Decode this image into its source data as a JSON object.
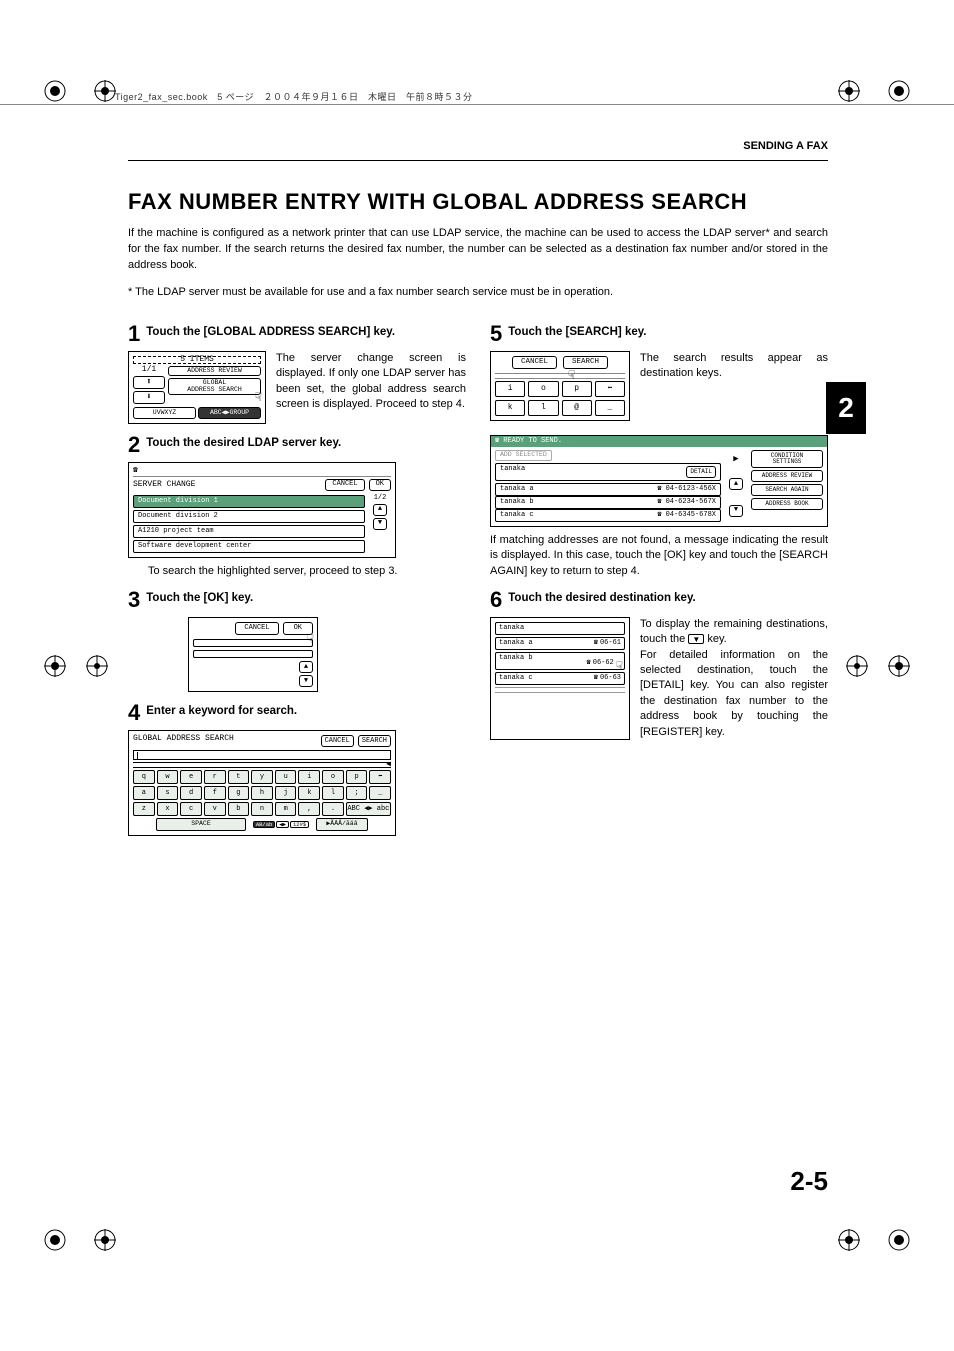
{
  "header": {
    "metaline": "Tiger2_fax_sec.book　5 ページ　２００４年９月１６日　木曜日　午前８時５３分",
    "section_label": "SENDING A FAX"
  },
  "title": "FAX NUMBER ENTRY WITH GLOBAL ADDRESS SEARCH",
  "intro_p1": "If the machine is configured as a network printer that can use LDAP service, the machine can be used to access the LDAP server* and search for the fax number. If the search returns the desired fax number, the number can be selected as a destination fax number and/or stored in the address book.",
  "intro_p2": "* The LDAP server must be available for use and a fax number search service must be in operation.",
  "steps": {
    "s1": {
      "num": "1",
      "title": "Touch the [GLOBAL ADDRESS SEARCH] key.",
      "text": "The server change screen is displayed. If only one LDAP server has been set, the global address search screen is displayed. Proceed to step 4.",
      "panel": {
        "top": "5 ITEMS",
        "count": "1/1",
        "review": "ADDRESS REVIEW",
        "global1": "GLOBAL",
        "global2": "ADDRESS SEARCH",
        "uvw": "UVWXYZ",
        "abc": "ABC",
        "group": "GROUP"
      }
    },
    "s2": {
      "num": "2",
      "title": "Touch the desired LDAP server key.",
      "text": "To search the highlighted server, proceed to step 3.",
      "panel": {
        "label": "SERVER CHANGE",
        "cancel": "CANCEL",
        "ok": "OK",
        "page": "1/2",
        "rows": [
          "Document division 1",
          "Document division 2",
          "A1210 project team",
          "Software development center"
        ]
      }
    },
    "s3": {
      "num": "3",
      "title": "Touch the [OK] key.",
      "panel": {
        "cancel": "CANCEL",
        "ok": "OK"
      }
    },
    "s4": {
      "num": "4",
      "title": "Enter a keyword for search.",
      "panel": {
        "label": "GLOBAL ADDRESS SEARCH",
        "cancel": "CANCEL",
        "search": "SEARCH",
        "rows": [
          [
            "q",
            "w",
            "e",
            "r",
            "t",
            "y",
            "u",
            "i",
            "o",
            "p",
            "⬅"
          ],
          [
            "a",
            "s",
            "d",
            "f",
            "g",
            "h",
            "j",
            "k",
            "l",
            ";",
            "_"
          ],
          [
            "z",
            "x",
            "c",
            "v",
            "b",
            "n",
            "m",
            ",",
            ".",
            "ABC ◀▶ abc"
          ]
        ],
        "space": "SPACE",
        "mode_act": "AB/ab",
        "mode_mid": "12#$",
        "mode_r": "ÃÄÂ/ãäâ"
      }
    },
    "s5": {
      "num": "5",
      "title": "Touch the [SEARCH] key.",
      "text": "The search results appear as destination keys.",
      "panel": {
        "cancel": "CANCEL",
        "search": "SEARCH",
        "rows": [
          [
            "i",
            "o",
            "p",
            "⬅"
          ],
          [
            "k",
            "l",
            "@",
            "_"
          ]
        ]
      }
    },
    "results_text": "If matching addresses are not found, a message indicating the result is displayed. In this case, touch the [OK] key and touch the [SEARCH AGAIN] key to return to step 4.",
    "results_panel": {
      "ready": "READY TO SEND.",
      "add": "ADD SELECTED",
      "query": "tanaka",
      "detail": "DETAIL",
      "rows": [
        {
          "name": "tanaka a",
          "num": "04-6123-456X"
        },
        {
          "name": "tanaka b",
          "num": "04-6234-567X"
        },
        {
          "name": "tanaka c",
          "num": "04-6345-678X"
        }
      ],
      "right": [
        "CONDITION\nSETTINGS",
        "ADDRESS REVIEW",
        "SEARCH AGAIN",
        "ADDRESS BOOK"
      ]
    },
    "s6": {
      "num": "6",
      "title": "Touch the desired destination key.",
      "text1": "To display the remaining destinations, touch the ",
      "text1b": " key.",
      "text2": "For detailed information on the selected destination, touch the [DETAIL] key. You can also register the destination fax number to the address book by touching the [REGISTER] key.",
      "panel": {
        "query": "tanaka",
        "rows": [
          {
            "name": "tanaka a",
            "num": "06-61"
          },
          {
            "name": "tanaka b",
            "num": "06-62"
          },
          {
            "name": "tanaka c",
            "num": "06-63"
          }
        ]
      }
    }
  },
  "side_tab": "2",
  "page_number": "2-5"
}
